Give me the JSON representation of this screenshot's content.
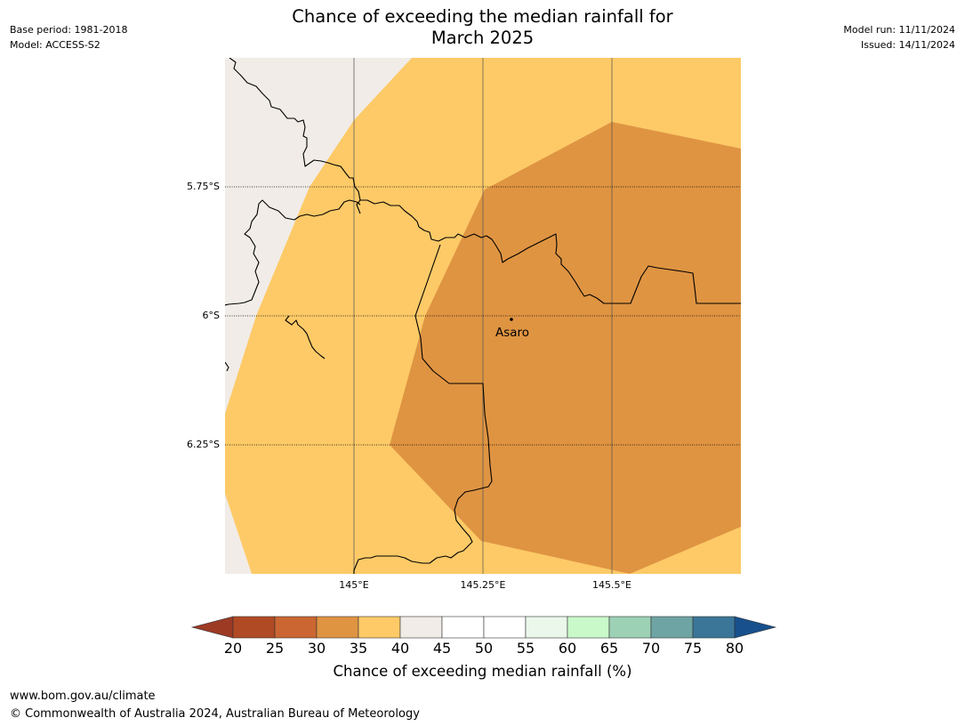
{
  "title": {
    "line1": "Chance of exceeding the median rainfall for",
    "line2": "March 2025"
  },
  "meta_left": {
    "base_period": "Base period: 1981-2018",
    "model": "Model: ACCESS-S2"
  },
  "meta_right": {
    "model_run": "Model run: 11/11/2024",
    "issued": "Issued: 14/11/2024"
  },
  "map": {
    "lat_labels": [
      "5.75°S",
      "6°S",
      "6.25°S"
    ],
    "lon_labels": [
      "145°E",
      "145.25°E",
      "145.5°E"
    ],
    "place": {
      "name": "Asaro"
    },
    "colors": {
      "land_low": "#f1ece7",
      "band_35_40": "#fdca67",
      "band_30_35": "#df9442",
      "border": "#000000",
      "gridline": "#555555"
    }
  },
  "colorbar": {
    "ticks": [
      "20",
      "25",
      "30",
      "35",
      "40",
      "45",
      "50",
      "55",
      "60",
      "65",
      "70",
      "75",
      "80"
    ],
    "colors": [
      "#9c3a24",
      "#b04a25",
      "#cb6632",
      "#df9442",
      "#fdca67",
      "#f1ece7",
      "#ffffff",
      "#ffffff",
      "#eaf7ea",
      "#c9f9c9",
      "#9dd1b6",
      "#6fa4a4",
      "#3b7699",
      "#17508c"
    ],
    "label": "Chance of exceeding median rainfall (%)"
  },
  "footer": {
    "url": "www.bom.gov.au/climate",
    "copyright": "© Commonwealth of Australia 2024, Australian Bureau of Meteorology"
  }
}
